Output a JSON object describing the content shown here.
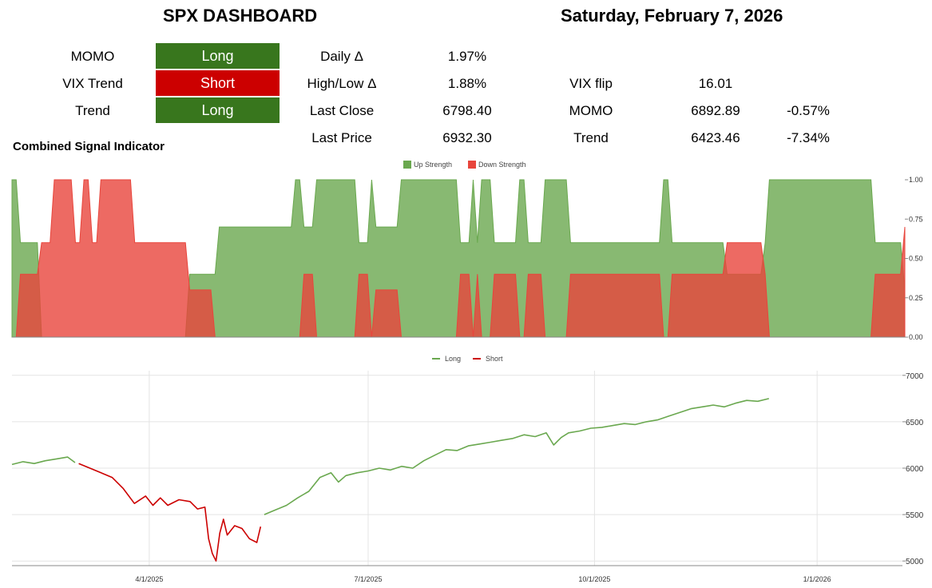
{
  "header": {
    "title": "SPX DASHBOARD",
    "date": "Saturday, February 7, 2026"
  },
  "signals": [
    {
      "label": "MOMO",
      "value": "Long",
      "color": "#38761d"
    },
    {
      "label": "VIX Trend",
      "value": "Short",
      "color": "#cc0000"
    },
    {
      "label": "Trend",
      "value": "Long",
      "color": "#38761d"
    }
  ],
  "stats": {
    "daily_label": "Daily Δ",
    "daily_value": "1.97%",
    "highlow_label": "High/Low Δ",
    "highlow_value": "1.88%",
    "lastclose_label": "Last Close",
    "lastclose_value": "6798.40",
    "lastprice_label": "Last Price",
    "lastprice_value": "6932.30",
    "vixflip_label": "VIX flip",
    "vixflip_value": "16.01",
    "momo_label": "MOMO",
    "momo_value": "6892.89",
    "momo_pct": "-0.57%",
    "trend_label": "Trend",
    "trend_value": "6423.46",
    "trend_pct": "-7.34%"
  },
  "section_title": "Combined Signal Indicator",
  "chart_data": [
    {
      "type": "area",
      "legend": [
        "Up Strength",
        "Down Strength"
      ],
      "colors": {
        "up": "#6aa84f",
        "down": "#e8453c"
      },
      "ylim": [
        0,
        1
      ],
      "yticks": [
        "1.00",
        "0.75",
        "0.50",
        "0.25",
        "0.00"
      ],
      "grid": false,
      "legend_position": "top",
      "series": [
        {
          "name": "Up Strength",
          "values": [
            1,
            1,
            0.6,
            0.6,
            0.6,
            0.6,
            0.6,
            0,
            0,
            0,
            0,
            0,
            0,
            0,
            0,
            0,
            0,
            0,
            0,
            0,
            0,
            0,
            0,
            0,
            0,
            0,
            0,
            0,
            0,
            0,
            0,
            0,
            0,
            0,
            0,
            0,
            0,
            0,
            0,
            0,
            0,
            0,
            0.4,
            0.4,
            0.4,
            0.4,
            0.4,
            0.4,
            0.4,
            0.7,
            0.7,
            0.7,
            0.7,
            0.7,
            0.7,
            0.7,
            0.7,
            0.7,
            0.7,
            0.7,
            0.7,
            0.7,
            0.7,
            0.7,
            0.7,
            0.7,
            0.7,
            1,
            1,
            0.7,
            0.7,
            0.7,
            1,
            1,
            1,
            1,
            1,
            1,
            1,
            1,
            1,
            1,
            0.6,
            0.6,
            0.6,
            1,
            0.7,
            0.7,
            0.7,
            0.7,
            0.7,
            0.7,
            1,
            1,
            1,
            1,
            1,
            1,
            1,
            1,
            1,
            1,
            1,
            1,
            1,
            1,
            0.6,
            0.6,
            0.6,
            1,
            0.6,
            1,
            1,
            1,
            0.6,
            0.6,
            0.6,
            0.6,
            0.6,
            0.6,
            1,
            1,
            0.6,
            0.6,
            0.6,
            0.6,
            1,
            1,
            1,
            1,
            1,
            1,
            0.6,
            0.6,
            0.6,
            0.6,
            0.6,
            0.6,
            0.6,
            0.6,
            0.6,
            0.6,
            0.6,
            0.6,
            0.6,
            0.6,
            0.6,
            0.6,
            0.6,
            0.6,
            0.6,
            0.6,
            0.6,
            0.6,
            1,
            1,
            0.6,
            0.6,
            0.6,
            0.6,
            0.6,
            0.6,
            0.6,
            0.6,
            0.6,
            0.6,
            0.6,
            0.6,
            0.6,
            0.4,
            0.4,
            0.4,
            0.4,
            0.4,
            0.4,
            0.4,
            0.4,
            0.4,
            0.6,
            1,
            1,
            1,
            1,
            1,
            1,
            1,
            1,
            1,
            1,
            1,
            1,
            1,
            1,
            1,
            1,
            1,
            1,
            1,
            1,
            1,
            1,
            1,
            1,
            1,
            0.6,
            0.6,
            0.6,
            0.6,
            0.6,
            0.6,
            0.6,
            0.3
          ]
        },
        {
          "name": "Down Strength",
          "values": [
            0,
            0,
            0.4,
            0.4,
            0.4,
            0.4,
            0.4,
            0.6,
            0.6,
            0.6,
            1,
            1,
            1,
            1,
            1,
            0.6,
            0.6,
            1,
            1,
            0.6,
            0.6,
            1,
            1,
            1,
            1,
            1,
            1,
            1,
            1,
            0.6,
            0.6,
            0.6,
            0.6,
            0.6,
            0.6,
            0.6,
            0.6,
            0.6,
            0.6,
            0.6,
            0.6,
            0.6,
            0.3,
            0.3,
            0.3,
            0.3,
            0.3,
            0.3,
            0,
            0,
            0,
            0,
            0,
            0,
            0,
            0,
            0,
            0,
            0,
            0,
            0,
            0,
            0,
            0,
            0,
            0,
            0,
            0,
            0,
            0.4,
            0.4,
            0.4,
            0,
            0,
            0,
            0,
            0,
            0,
            0,
            0,
            0,
            0,
            0.4,
            0.4,
            0.4,
            0,
            0.3,
            0.3,
            0.3,
            0.3,
            0.3,
            0.3,
            0,
            0,
            0,
            0,
            0,
            0,
            0,
            0,
            0,
            0,
            0,
            0,
            0,
            0,
            0.4,
            0.4,
            0.4,
            0,
            0.4,
            0,
            0,
            0,
            0.4,
            0.4,
            0.4,
            0.4,
            0.4,
            0.4,
            0,
            0,
            0.4,
            0.4,
            0.4,
            0.4,
            0,
            0,
            0,
            0,
            0,
            0,
            0.4,
            0.4,
            0.4,
            0.4,
            0.4,
            0.4,
            0.4,
            0.4,
            0.4,
            0.4,
            0.4,
            0.4,
            0.4,
            0.4,
            0.4,
            0.4,
            0.4,
            0.4,
            0.4,
            0.4,
            0.4,
            0.4,
            0,
            0,
            0.4,
            0.4,
            0.4,
            0.4,
            0.4,
            0.4,
            0.4,
            0.4,
            0.4,
            0.4,
            0.4,
            0.4,
            0.4,
            0.6,
            0.6,
            0.6,
            0.6,
            0.6,
            0.6,
            0.6,
            0.6,
            0.6,
            0.4,
            0,
            0,
            0,
            0,
            0,
            0,
            0,
            0,
            0,
            0,
            0,
            0,
            0,
            0,
            0,
            0,
            0,
            0,
            0,
            0,
            0,
            0,
            0,
            0,
            0,
            0.4,
            0.4,
            0.4,
            0.4,
            0.4,
            0.4,
            0.4,
            0.7
          ]
        }
      ]
    },
    {
      "type": "line",
      "legend": [
        "Long",
        "Short"
      ],
      "colors": {
        "Long": "#6aa84f",
        "Short": "#cc0000"
      },
      "ylim": [
        4950,
        7050
      ],
      "yticks": [
        7000,
        6500,
        6000,
        5500,
        5000
      ],
      "xticks": [
        "4/1/2025",
        "7/1/2025",
        "10/1/2025",
        "1/1/2026"
      ],
      "grid": true,
      "legend_position": "top",
      "points": [
        [
          0,
          6040,
          "L"
        ],
        [
          3,
          6070,
          "L"
        ],
        [
          6,
          6050,
          "L"
        ],
        [
          9,
          6080,
          "L"
        ],
        [
          12,
          6100,
          "L"
        ],
        [
          15,
          6120,
          "L"
        ],
        [
          17,
          6060,
          "L"
        ],
        [
          18,
          6050,
          "S"
        ],
        [
          21,
          6000,
          "S"
        ],
        [
          24,
          5950,
          "S"
        ],
        [
          27,
          5900,
          "S"
        ],
        [
          30,
          5780,
          "S"
        ],
        [
          33,
          5620,
          "S"
        ],
        [
          36,
          5700,
          "S"
        ],
        [
          38,
          5600,
          "S"
        ],
        [
          40,
          5680,
          "S"
        ],
        [
          42,
          5600,
          "S"
        ],
        [
          45,
          5660,
          "S"
        ],
        [
          48,
          5640,
          "S"
        ],
        [
          50,
          5560,
          "S"
        ],
        [
          52,
          5580,
          "S"
        ],
        [
          53,
          5240,
          "S"
        ],
        [
          54,
          5080,
          "S"
        ],
        [
          55,
          5000,
          "S"
        ],
        [
          56,
          5300,
          "S"
        ],
        [
          57,
          5450,
          "S"
        ],
        [
          58,
          5280,
          "S"
        ],
        [
          60,
          5380,
          "S"
        ],
        [
          62,
          5350,
          "S"
        ],
        [
          64,
          5240,
          "S"
        ],
        [
          66,
          5200,
          "S"
        ],
        [
          67,
          5370,
          "S"
        ],
        [
          68,
          5500,
          "L"
        ],
        [
          71,
          5550,
          "L"
        ],
        [
          74,
          5600,
          "L"
        ],
        [
          77,
          5680,
          "L"
        ],
        [
          80,
          5750,
          "L"
        ],
        [
          83,
          5900,
          "L"
        ],
        [
          86,
          5950,
          "L"
        ],
        [
          88,
          5850,
          "L"
        ],
        [
          90,
          5920,
          "L"
        ],
        [
          93,
          5950,
          "L"
        ],
        [
          96,
          5970,
          "L"
        ],
        [
          99,
          6000,
          "L"
        ],
        [
          102,
          5980,
          "L"
        ],
        [
          105,
          6020,
          "L"
        ],
        [
          108,
          6000,
          "L"
        ],
        [
          111,
          6080,
          "L"
        ],
        [
          114,
          6140,
          "L"
        ],
        [
          117,
          6200,
          "L"
        ],
        [
          120,
          6190,
          "L"
        ],
        [
          123,
          6240,
          "L"
        ],
        [
          126,
          6260,
          "L"
        ],
        [
          129,
          6280,
          "L"
        ],
        [
          132,
          6300,
          "L"
        ],
        [
          135,
          6320,
          "L"
        ],
        [
          138,
          6360,
          "L"
        ],
        [
          141,
          6340,
          "L"
        ],
        [
          144,
          6380,
          "L"
        ],
        [
          146,
          6250,
          "L"
        ],
        [
          148,
          6330,
          "L"
        ],
        [
          150,
          6380,
          "L"
        ],
        [
          153,
          6400,
          "L"
        ],
        [
          156,
          6430,
          "L"
        ],
        [
          159,
          6440,
          "L"
        ],
        [
          162,
          6460,
          "L"
        ],
        [
          165,
          6480,
          "L"
        ],
        [
          168,
          6470,
          "L"
        ],
        [
          171,
          6500,
          "L"
        ],
        [
          174,
          6520,
          "L"
        ],
        [
          177,
          6560,
          "L"
        ],
        [
          180,
          6600,
          "L"
        ],
        [
          183,
          6640,
          "L"
        ],
        [
          186,
          6660,
          "L"
        ],
        [
          189,
          6680,
          "L"
        ],
        [
          192,
          6660,
          "L"
        ],
        [
          195,
          6700,
          "L"
        ],
        [
          198,
          6730,
          "L"
        ],
        [
          201,
          6720,
          "L"
        ],
        [
          204,
          6750,
          "L"
        ]
      ]
    }
  ]
}
